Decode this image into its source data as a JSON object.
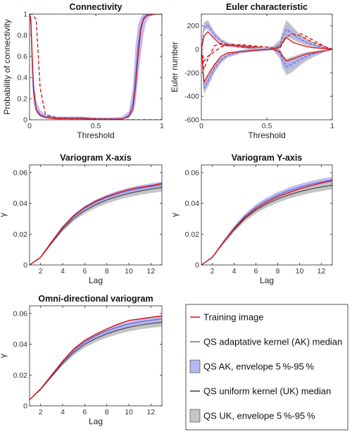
{
  "legend": {
    "items": [
      {
        "label": "Training image",
        "kind": "line",
        "color": "#d7191c"
      },
      {
        "label": "QS adaptative kernel (AK) median",
        "kind": "line",
        "color": "#6b6bd6"
      },
      {
        "label": "QS AK, envelope 5 %-95 %",
        "kind": "patch",
        "color": "#b8b8f0"
      },
      {
        "label": "QS uniform kernel (UK) median",
        "kind": "line",
        "color": "#444444"
      },
      {
        "label": "QS UK, envelope 5 %-95 %",
        "kind": "patch",
        "color": "#c6c6c6"
      }
    ]
  },
  "colors": {
    "training": "#d7191c",
    "ak_median": "#5a5ad0",
    "ak_band": "#b3b3ee",
    "uk_median": "#333333",
    "uk_band": "#c4c4c4"
  },
  "chart_data": [
    {
      "id": "connectivity",
      "type": "line",
      "title": "Connectivity",
      "xlabel": "Threshold",
      "ylabel": "Probability of connectivity",
      "xlim": [
        0,
        1
      ],
      "ylim": [
        0,
        1
      ],
      "xticks": [
        0,
        0.5,
        1
      ],
      "xtick_labels": [
        "0",
        "0.5",
        "1"
      ],
      "yticks": [
        0,
        0.2,
        0.4,
        0.6,
        0.8,
        1
      ],
      "ytick_labels": [
        "0",
        "0.2",
        "0.4",
        "0.6",
        "0.8",
        "1"
      ],
      "x": [
        0,
        0.01,
        0.02,
        0.03,
        0.05,
        0.08,
        0.12,
        0.2,
        0.3,
        0.4,
        0.5,
        0.6,
        0.7,
        0.75,
        0.78,
        0.8,
        0.82,
        0.84,
        0.86,
        0.88,
        0.9,
        0.95,
        1
      ],
      "training_solid": [
        1,
        0.95,
        0.6,
        0.3,
        0.1,
        0.04,
        0.02,
        0.01,
        0.01,
        0.01,
        0,
        0,
        0.01,
        0.03,
        0.1,
        0.3,
        0.6,
        0.85,
        0.95,
        0.98,
        0.99,
        1,
        1
      ],
      "training_dashed": [
        1,
        1,
        1,
        0.98,
        0.95,
        0.3,
        0.05,
        0.02,
        0.01,
        0.01,
        0.01,
        0.01,
        0,
        0,
        0,
        0,
        0,
        0,
        0,
        0,
        0,
        0,
        0
      ],
      "ak_median": [
        1,
        0.9,
        0.5,
        0.25,
        0.1,
        0.05,
        0.03,
        0.02,
        0.02,
        0.02,
        0.01,
        0.01,
        0.01,
        0.04,
        0.15,
        0.4,
        0.7,
        0.88,
        0.96,
        0.99,
        1,
        1,
        1
      ],
      "ak_low": [
        1,
        0.8,
        0.35,
        0.15,
        0.06,
        0.03,
        0.02,
        0.01,
        0.01,
        0.01,
        0,
        0,
        0,
        0.02,
        0.06,
        0.15,
        0.4,
        0.6,
        0.8,
        0.92,
        0.97,
        1,
        1
      ],
      "ak_high": [
        1,
        0.98,
        0.7,
        0.4,
        0.18,
        0.09,
        0.05,
        0.03,
        0.03,
        0.03,
        0.02,
        0.02,
        0.03,
        0.08,
        0.3,
        0.7,
        0.9,
        0.97,
        1,
        1,
        1,
        1,
        1
      ]
    },
    {
      "id": "euler",
      "type": "line",
      "title": "Euler characteristic",
      "xlabel": "Threshold",
      "ylabel": "Euler number",
      "xlim": [
        0,
        1
      ],
      "ylim": [
        -600,
        300
      ],
      "xticks": [
        0,
        0.5,
        1
      ],
      "xtick_labels": [
        "0",
        "0.5",
        "1"
      ],
      "yticks": [
        -600,
        -400,
        -200,
        0,
        200
      ],
      "ytick_labels": [
        "-600",
        "-400",
        "-200",
        "0",
        "200"
      ],
      "x": [
        0,
        0.02,
        0.05,
        0.1,
        0.15,
        0.2,
        0.3,
        0.4,
        0.5,
        0.55,
        0.6,
        0.62,
        0.65,
        0.7,
        0.75,
        0.8,
        0.85,
        0.9,
        0.95,
        1
      ],
      "upper": {
        "training_solid": [
          0,
          110,
          150,
          90,
          40,
          30,
          30,
          20,
          10,
          0,
          -20,
          -60,
          -100,
          -80,
          -60,
          -40,
          -30,
          -20,
          -10,
          0
        ],
        "training_dashed": [
          0,
          -170,
          -80,
          30,
          50,
          40,
          20,
          10,
          0,
          0,
          10,
          50,
          110,
          150,
          140,
          110,
          80,
          50,
          20,
          0
        ],
        "ak_median": [
          0,
          190,
          200,
          120,
          70,
          40,
          20,
          10,
          5,
          0,
          -30,
          -90,
          -150,
          -120,
          -90,
          -60,
          -40,
          -25,
          -10,
          0
        ],
        "ak_low": [
          0,
          160,
          170,
          100,
          55,
          30,
          10,
          0,
          -5,
          -10,
          -60,
          -130,
          -180,
          -160,
          -120,
          -80,
          -55,
          -35,
          -15,
          0
        ],
        "ak_high": [
          0,
          220,
          230,
          140,
          85,
          55,
          30,
          20,
          15,
          10,
          0,
          -60,
          -110,
          -80,
          -60,
          -40,
          -25,
          -15,
          -5,
          0
        ],
        "uk_low": [
          0,
          170,
          190,
          110,
          60,
          35,
          15,
          5,
          0,
          -10,
          -80,
          -160,
          -220,
          -190,
          -140,
          -100,
          -70,
          -45,
          -20,
          0
        ],
        "uk_high": [
          0,
          230,
          250,
          150,
          90,
          60,
          35,
          25,
          20,
          15,
          10,
          -40,
          -80,
          -60,
          -40,
          -25,
          -15,
          -10,
          -5,
          0
        ]
      },
      "lower": {
        "training_solid": [
          0,
          -280,
          -220,
          -130,
          -60,
          -30,
          -20,
          -10,
          0,
          0,
          20,
          60,
          100,
          60,
          40,
          25,
          15,
          10,
          5,
          0
        ],
        "training_dashed": [
          0,
          -100,
          -60,
          -20,
          20,
          40,
          40,
          30,
          20,
          10,
          20,
          60,
          110,
          130,
          120,
          90,
          60,
          40,
          20,
          0
        ],
        "ak_median": [
          0,
          -330,
          -270,
          -160,
          -90,
          -50,
          -20,
          -5,
          0,
          10,
          40,
          100,
          170,
          130,
          90,
          60,
          40,
          25,
          10,
          0
        ],
        "ak_low": [
          0,
          -360,
          -300,
          -185,
          -110,
          -65,
          -30,
          -15,
          -10,
          0,
          20,
          70,
          130,
          100,
          70,
          45,
          30,
          18,
          8,
          0
        ],
        "ak_high": [
          0,
          -300,
          -240,
          -140,
          -75,
          -40,
          -10,
          5,
          10,
          20,
          60,
          130,
          210,
          160,
          110,
          75,
          50,
          30,
          12,
          0
        ],
        "uk_low": [
          0,
          -380,
          -320,
          -200,
          -120,
          -70,
          -35,
          -20,
          -15,
          -5,
          10,
          60,
          110,
          80,
          55,
          35,
          22,
          14,
          6,
          0
        ],
        "uk_high": [
          0,
          -290,
          -230,
          -130,
          -70,
          -35,
          -5,
          10,
          20,
          30,
          80,
          160,
          250,
          190,
          130,
          90,
          60,
          35,
          15,
          0
        ]
      }
    },
    {
      "id": "vario-x",
      "type": "line",
      "title": "Variogram X-axis",
      "xlabel": "Lag",
      "ylabel": "γ",
      "xlim": [
        1,
        13
      ],
      "ylim": [
        0,
        0.065
      ],
      "xticks": [
        2,
        4,
        6,
        8,
        10,
        12
      ],
      "xtick_labels": [
        "2",
        "4",
        "6",
        "8",
        "10",
        "12"
      ],
      "yticks": [
        0,
        0.02,
        0.04,
        0.06
      ],
      "ytick_labels": [
        "0",
        "0.02",
        "0.04",
        "0.06"
      ],
      "x": [
        1,
        2,
        3,
        4,
        5,
        6,
        7,
        8,
        9,
        10,
        11,
        12,
        13
      ],
      "training": [
        0,
        0.005,
        0.015,
        0.0245,
        0.032,
        0.0375,
        0.0415,
        0.0445,
        0.047,
        0.049,
        0.0505,
        0.0515,
        0.053
      ],
      "ak_median": [
        0,
        0.005,
        0.0148,
        0.0242,
        0.0315,
        0.0368,
        0.0408,
        0.0438,
        0.0462,
        0.0482,
        0.0497,
        0.051,
        0.052
      ],
      "ak_low": [
        0,
        0.0047,
        0.014,
        0.023,
        0.0302,
        0.0355,
        0.0395,
        0.0425,
        0.0449,
        0.0468,
        0.0484,
        0.0497,
        0.0508
      ],
      "ak_high": [
        0,
        0.0053,
        0.0157,
        0.0255,
        0.0329,
        0.0384,
        0.0425,
        0.0456,
        0.0481,
        0.0502,
        0.0518,
        0.053,
        0.0541
      ],
      "uk_median": [
        0,
        0.0048,
        0.0143,
        0.0233,
        0.0302,
        0.0353,
        0.0392,
        0.0422,
        0.0445,
        0.0465,
        0.048,
        0.0493,
        0.0503
      ],
      "uk_low": [
        0,
        0.0045,
        0.0133,
        0.0218,
        0.0285,
        0.0334,
        0.0371,
        0.0399,
        0.0422,
        0.044,
        0.0455,
        0.0467,
        0.0477
      ],
      "uk_high": [
        0,
        0.0051,
        0.0152,
        0.0247,
        0.0319,
        0.0372,
        0.0412,
        0.0443,
        0.0467,
        0.0487,
        0.0503,
        0.0515,
        0.0526
      ]
    },
    {
      "id": "vario-y",
      "type": "line",
      "title": "Variogram Y-axis",
      "xlabel": "Lag",
      "ylabel": "γ",
      "xlim": [
        1,
        13
      ],
      "ylim": [
        0,
        0.065
      ],
      "xticks": [
        2,
        4,
        6,
        8,
        10,
        12
      ],
      "xtick_labels": [
        "2",
        "4",
        "6",
        "8",
        "10",
        "12"
      ],
      "yticks": [
        0,
        0.02,
        0.04,
        0.06
      ],
      "ytick_labels": [
        "0",
        "0.02",
        "0.04",
        "0.06"
      ],
      "x": [
        1,
        2,
        3,
        4,
        5,
        6,
        7,
        8,
        9,
        10,
        11,
        12,
        13
      ],
      "training": [
        0,
        0.005,
        0.0145,
        0.0235,
        0.031,
        0.0365,
        0.0408,
        0.0443,
        0.047,
        0.0495,
        0.0515,
        0.0532,
        0.0548
      ],
      "ak_median": [
        0,
        0.005,
        0.0148,
        0.024,
        0.0318,
        0.0376,
        0.042,
        0.0455,
        0.0483,
        0.0506,
        0.0525,
        0.054,
        0.0553
      ],
      "ak_low": [
        0,
        0.0047,
        0.014,
        0.0228,
        0.0304,
        0.036,
        0.0403,
        0.0437,
        0.0465,
        0.0488,
        0.0506,
        0.0521,
        0.0534
      ],
      "ak_high": [
        0,
        0.0053,
        0.0158,
        0.0253,
        0.0333,
        0.0393,
        0.0438,
        0.0473,
        0.0502,
        0.0525,
        0.0545,
        0.056,
        0.0573
      ],
      "uk_median": [
        0,
        0.0048,
        0.0142,
        0.0229,
        0.0302,
        0.0356,
        0.0397,
        0.0429,
        0.0455,
        0.0476,
        0.0493,
        0.0507,
        0.0518
      ],
      "uk_low": [
        0,
        0.0045,
        0.0132,
        0.0214,
        0.0283,
        0.0335,
        0.0374,
        0.0405,
        0.043,
        0.045,
        0.0467,
        0.048,
        0.0491
      ],
      "uk_high": [
        0,
        0.0051,
        0.0152,
        0.0244,
        0.032,
        0.0376,
        0.0419,
        0.0452,
        0.0479,
        0.05,
        0.0518,
        0.0533,
        0.0545
      ]
    },
    {
      "id": "vario-omni",
      "type": "line",
      "title": "Omni-directional variogram",
      "xlabel": "Lag",
      "ylabel": "γ",
      "xlim": [
        1,
        13
      ],
      "ylim": [
        0,
        0.065
      ],
      "xticks": [
        2,
        4,
        6,
        8,
        10,
        12
      ],
      "xtick_labels": [
        "2",
        "4",
        "6",
        "8",
        "10",
        "12"
      ],
      "yticks": [
        0,
        0.02,
        0.04,
        0.06
      ],
      "ytick_labels": [
        "0",
        "0.02",
        "0.04",
        "0.06"
      ],
      "x": [
        1,
        2,
        3,
        4,
        5,
        6,
        7,
        8,
        9,
        10,
        11,
        12,
        13
      ],
      "training": [
        0.004,
        0.011,
        0.02,
        0.029,
        0.037,
        0.0425,
        0.0465,
        0.05,
        0.053,
        0.0555,
        0.0565,
        0.0575,
        0.0585
      ],
      "ak_median": [
        0.004,
        0.0108,
        0.0197,
        0.0285,
        0.036,
        0.0415,
        0.0455,
        0.0487,
        0.0512,
        0.0532,
        0.0546,
        0.0556,
        0.0565
      ],
      "ak_low": [
        0.004,
        0.0105,
        0.019,
        0.0274,
        0.0347,
        0.0401,
        0.044,
        0.047,
        0.0495,
        0.0515,
        0.0528,
        0.0538,
        0.0547
      ],
      "ak_high": [
        0.004,
        0.0111,
        0.0205,
        0.0296,
        0.0373,
        0.0429,
        0.047,
        0.0502,
        0.0528,
        0.0548,
        0.0562,
        0.0573,
        0.0582
      ],
      "uk_median": [
        0.004,
        0.0106,
        0.0192,
        0.0276,
        0.0347,
        0.04,
        0.0438,
        0.0468,
        0.0492,
        0.0511,
        0.0525,
        0.0535,
        0.0543
      ],
      "uk_low": [
        0.004,
        0.0102,
        0.0183,
        0.0262,
        0.0329,
        0.0379,
        0.0415,
        0.0443,
        0.0466,
        0.0484,
        0.0497,
        0.0507,
        0.0515
      ],
      "uk_high": [
        0.004,
        0.011,
        0.0202,
        0.0291,
        0.0366,
        0.0421,
        0.0461,
        0.0492,
        0.0517,
        0.0537,
        0.0551,
        0.0562,
        0.057
      ]
    }
  ]
}
